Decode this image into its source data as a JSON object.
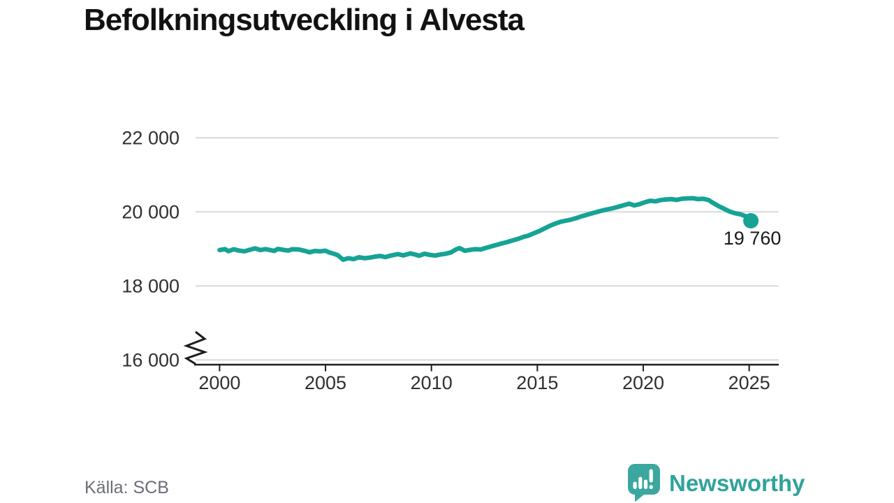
{
  "title": "Befolkningsutveckling i Alvesta",
  "source": "Källa: SCB",
  "logo": {
    "text": "Newsworthy"
  },
  "colors": {
    "line": "#16a396",
    "grid": "#d9d9d9",
    "axis": "#1d1d1d",
    "tick_label": "#2f2f2f",
    "annotation": "#1a1a1a",
    "title": "#121212",
    "source": "#6b6e77",
    "brand_bubble": "#3ba79e",
    "brand_text": "#2fa39b"
  },
  "chart_data": {
    "type": "line",
    "title": "Befolkningsutveckling i Alvesta",
    "xlabel": "",
    "ylabel": "",
    "x_axis": {
      "ticks": [
        2000,
        2005,
        2010,
        2015,
        2020,
        2025
      ],
      "labels": [
        "2000",
        "2005",
        "2010",
        "2015",
        "2020",
        "2025"
      ],
      "xlim": [
        1998.8,
        2026.4
      ]
    },
    "y_axis": {
      "ticks": [
        16000,
        18000,
        20000,
        22000
      ],
      "labels": [
        "16 000",
        "18 000",
        "20 000",
        "22 000"
      ],
      "ylim": [
        16000,
        22600
      ],
      "axis_break": true
    },
    "grid": "horizontal",
    "legend": "none",
    "annotation": {
      "text": "19 760",
      "x": 2025.08,
      "y": 19760
    },
    "series": [
      {
        "name": "Befolkning",
        "points": [
          [
            2000.0,
            18970
          ],
          [
            2000.25,
            18995
          ],
          [
            2000.42,
            18940
          ],
          [
            2000.67,
            18990
          ],
          [
            2000.92,
            18955
          ],
          [
            2001.17,
            18935
          ],
          [
            2001.42,
            18975
          ],
          [
            2001.67,
            19015
          ],
          [
            2001.92,
            18970
          ],
          [
            2002.17,
            18995
          ],
          [
            2002.33,
            18975
          ],
          [
            2002.58,
            18945
          ],
          [
            2002.75,
            19000
          ],
          [
            2003.0,
            18975
          ],
          [
            2003.25,
            18955
          ],
          [
            2003.42,
            18990
          ],
          [
            2003.75,
            18985
          ],
          [
            2004.0,
            18950
          ],
          [
            2004.25,
            18910
          ],
          [
            2004.5,
            18945
          ],
          [
            2004.75,
            18935
          ],
          [
            2005.0,
            18950
          ],
          [
            2005.17,
            18905
          ],
          [
            2005.42,
            18865
          ],
          [
            2005.58,
            18830
          ],
          [
            2005.83,
            18710
          ],
          [
            2006.08,
            18750
          ],
          [
            2006.33,
            18725
          ],
          [
            2006.58,
            18775
          ],
          [
            2006.83,
            18750
          ],
          [
            2007.08,
            18765
          ],
          [
            2007.33,
            18790
          ],
          [
            2007.58,
            18810
          ],
          [
            2007.83,
            18780
          ],
          [
            2008.08,
            18820
          ],
          [
            2008.42,
            18860
          ],
          [
            2008.67,
            18825
          ],
          [
            2009.0,
            18880
          ],
          [
            2009.25,
            18845
          ],
          [
            2009.42,
            18815
          ],
          [
            2009.67,
            18870
          ],
          [
            2009.92,
            18840
          ],
          [
            2010.17,
            18820
          ],
          [
            2010.42,
            18850
          ],
          [
            2010.67,
            18870
          ],
          [
            2010.92,
            18905
          ],
          [
            2011.17,
            18990
          ],
          [
            2011.33,
            19020
          ],
          [
            2011.58,
            18950
          ],
          [
            2011.83,
            18975
          ],
          [
            2012.08,
            18995
          ],
          [
            2012.33,
            18985
          ],
          [
            2012.58,
            19030
          ],
          [
            2012.83,
            19070
          ],
          [
            2013.08,
            19110
          ],
          [
            2013.33,
            19150
          ],
          [
            2013.58,
            19185
          ],
          [
            2013.83,
            19230
          ],
          [
            2014.08,
            19270
          ],
          [
            2014.33,
            19320
          ],
          [
            2014.58,
            19360
          ],
          [
            2014.83,
            19420
          ],
          [
            2015.08,
            19480
          ],
          [
            2015.33,
            19550
          ],
          [
            2015.58,
            19620
          ],
          [
            2015.83,
            19680
          ],
          [
            2016.08,
            19730
          ],
          [
            2016.33,
            19760
          ],
          [
            2016.58,
            19790
          ],
          [
            2016.83,
            19830
          ],
          [
            2017.08,
            19880
          ],
          [
            2017.33,
            19920
          ],
          [
            2017.58,
            19960
          ],
          [
            2017.83,
            20000
          ],
          [
            2018.08,
            20040
          ],
          [
            2018.33,
            20070
          ],
          [
            2018.58,
            20100
          ],
          [
            2018.83,
            20140
          ],
          [
            2019.08,
            20180
          ],
          [
            2019.33,
            20220
          ],
          [
            2019.58,
            20175
          ],
          [
            2019.83,
            20210
          ],
          [
            2020.08,
            20260
          ],
          [
            2020.33,
            20300
          ],
          [
            2020.58,
            20285
          ],
          [
            2020.83,
            20320
          ],
          [
            2021.08,
            20335
          ],
          [
            2021.33,
            20345
          ],
          [
            2021.58,
            20325
          ],
          [
            2021.83,
            20355
          ],
          [
            2022.08,
            20365
          ],
          [
            2022.33,
            20370
          ],
          [
            2022.58,
            20345
          ],
          [
            2022.83,
            20355
          ],
          [
            2023.08,
            20320
          ],
          [
            2023.33,
            20230
          ],
          [
            2023.58,
            20150
          ],
          [
            2023.83,
            20080
          ],
          [
            2024.08,
            20010
          ],
          [
            2024.33,
            19965
          ],
          [
            2024.58,
            19935
          ],
          [
            2024.83,
            19885
          ],
          [
            2025.08,
            19760
          ]
        ]
      }
    ]
  }
}
